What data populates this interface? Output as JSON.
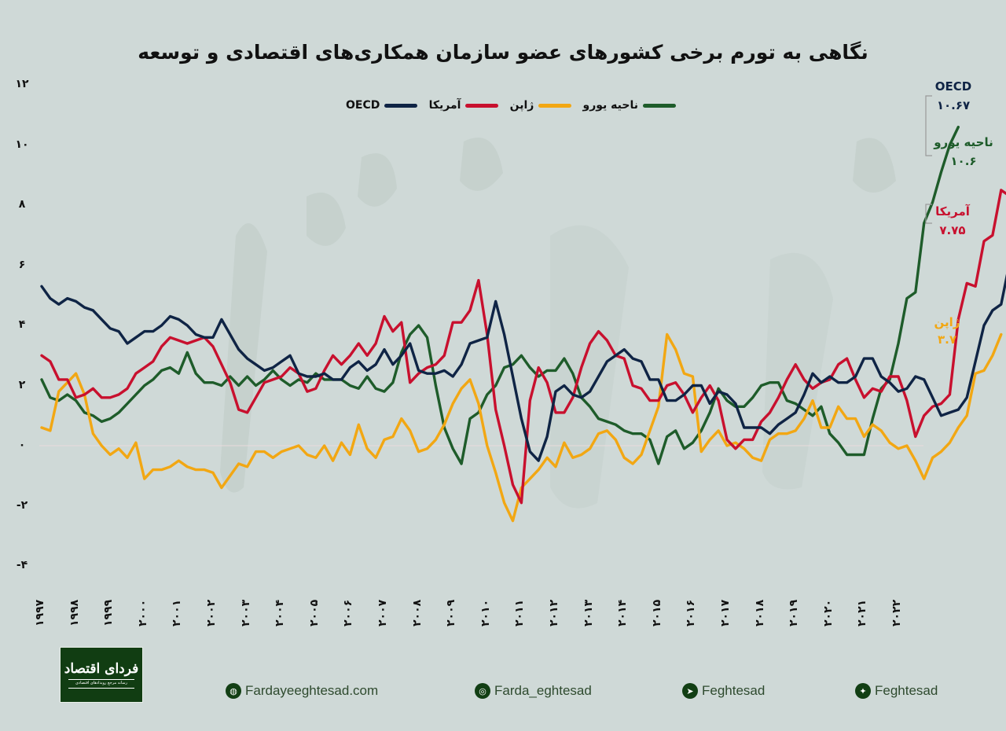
{
  "title": "نگاهی به تورم برخی کشورهای عضو سازمان همکاری‌های اقتصادی و توسعه",
  "legend": [
    {
      "label": "OECD",
      "color": "#0f2445"
    },
    {
      "label": "آمریکا",
      "color": "#c8102e"
    },
    {
      "label": "ژاپن",
      "color": "#f2a713"
    },
    {
      "label": "ناحیه یورو",
      "color": "#1e5c2a"
    }
  ],
  "end_labels": {
    "oecd": {
      "name": "OECD",
      "value": "۱۰.۶۷"
    },
    "euro": {
      "name": "ناحیه یورو",
      "value": "۱۰.۶"
    },
    "us": {
      "name": "آمریکا",
      "value": "۷.۷۵"
    },
    "japan": {
      "name": "ژاپن",
      "value": "۳.۷"
    }
  },
  "y_ticks": [
    "۱۲",
    "۱۰",
    "۸",
    "۶",
    "۴",
    "۲",
    "۰",
    "-۲",
    "-۴"
  ],
  "x_ticks": [
    "۱۹۹۷",
    "۱۹۹۸",
    "۱۹۹۹",
    "۲۰۰۰",
    "۲۰۰۱",
    "۲۰۰۲",
    "۲۰۰۳",
    "۲۰۰۴",
    "۲۰۰۵",
    "۲۰۰۶",
    "۲۰۰۷",
    "۲۰۰۸",
    "۲۰۰۹",
    "۲۰۱۰",
    "۲۰۱۱",
    "۲۰۱۲",
    "۲۰۱۳",
    "۲۰۱۴",
    "۲۰۱۵",
    "۲۰۱۶",
    "۲۰۱۷",
    "۲۰۱۸",
    "۲۰۱۹",
    "۲۰۲۰",
    "۲۰۲۱",
    "۲۰۲۲"
  ],
  "footer": {
    "logo_name": "فردای اقتصاد",
    "logo_tagline": "رسانه مرجع رویدادهای اقتصادی",
    "links": [
      {
        "icon": "globe-icon",
        "label": "Fardayeeghtesad.com"
      },
      {
        "icon": "instagram-icon",
        "label": "Farda_eghtesad"
      },
      {
        "icon": "telegram-icon",
        "label": "Feghtesad"
      },
      {
        "icon": "twitter-icon",
        "label": "Feghtesad"
      }
    ]
  },
  "chart_data": {
    "type": "line",
    "title": "نگاهی به تورم برخی کشورهای عضو سازمان همکاری‌های اقتصادی و توسعه",
    "xlabel": "",
    "ylabel": "",
    "ylim": [
      -4,
      12
    ],
    "grid": false,
    "legend_position": "top",
    "x_start": 1997.0,
    "x_step": 0.25,
    "x_tick_labels": [
      "1997",
      "1998",
      "1999",
      "2000",
      "2001",
      "2002",
      "2003",
      "2004",
      "2005",
      "2006",
      "2007",
      "2008",
      "2009",
      "2010",
      "2011",
      "2012",
      "2013",
      "2014",
      "2015",
      "2016",
      "2017",
      "2018",
      "2019",
      "2020",
      "2021",
      "2022"
    ],
    "series": [
      {
        "name": "OECD",
        "color": "#0f2445",
        "values": [
          5.3,
          4.9,
          4.7,
          4.9,
          4.8,
          4.6,
          4.5,
          4.2,
          3.9,
          3.8,
          3.4,
          3.6,
          3.8,
          3.8,
          4.0,
          4.3,
          4.2,
          4.0,
          3.7,
          3.6,
          3.6,
          4.2,
          3.7,
          3.2,
          2.9,
          2.7,
          2.5,
          2.6,
          2.8,
          3.0,
          2.4,
          2.3,
          2.3,
          2.4,
          2.2,
          2.2,
          2.6,
          2.8,
          2.5,
          2.7,
          3.2,
          2.7,
          3.0,
          3.4,
          2.5,
          2.4,
          2.4,
          2.5,
          2.3,
          2.7,
          3.4,
          3.5,
          3.6,
          4.8,
          3.7,
          2.3,
          0.9,
          -0.2,
          -0.5,
          0.3,
          1.8,
          2.0,
          1.7,
          1.6,
          1.8,
          2.3,
          2.8,
          3.0,
          3.2,
          2.9,
          2.8,
          2.2,
          2.2,
          1.5,
          1.5,
          1.7,
          2.0,
          2.0,
          1.4,
          1.8,
          1.7,
          1.4,
          0.6,
          0.6,
          0.6,
          0.4,
          0.7,
          0.9,
          1.1,
          1.7,
          2.4,
          2.1,
          2.3,
          2.1,
          2.1,
          2.3,
          2.9,
          2.9,
          2.3,
          2.1,
          1.8,
          1.9,
          2.3,
          2.2,
          1.6,
          1.0,
          1.1,
          1.2,
          1.6,
          2.8,
          4.0,
          4.5,
          4.7,
          6.1,
          7.5,
          8.2,
          9.6,
          10.3,
          10.67
        ]
      },
      {
        "name": "آمریکا",
        "color": "#c8102e",
        "values": [
          3.0,
          2.8,
          2.2,
          2.2,
          1.6,
          1.7,
          1.9,
          1.6,
          1.6,
          1.7,
          1.9,
          2.4,
          2.6,
          2.8,
          3.3,
          3.6,
          3.5,
          3.4,
          3.5,
          3.6,
          3.3,
          2.7,
          2.1,
          1.2,
          1.1,
          1.6,
          2.1,
          2.2,
          2.3,
          2.6,
          2.4,
          1.8,
          1.9,
          2.5,
          3.0,
          2.7,
          3.0,
          3.4,
          3.0,
          3.4,
          4.3,
          3.8,
          4.1,
          2.1,
          2.4,
          2.6,
          2.7,
          3.0,
          4.1,
          4.1,
          4.5,
          5.5,
          3.7,
          1.2,
          0.0,
          -1.3,
          -1.9,
          1.5,
          2.6,
          2.1,
          1.1,
          1.1,
          1.6,
          2.6,
          3.4,
          3.8,
          3.5,
          3.0,
          2.9,
          2.0,
          1.9,
          1.5,
          1.5,
          2.0,
          2.1,
          1.7,
          1.1,
          1.6,
          2.0,
          1.5,
          0.2,
          -0.1,
          0.2,
          0.2,
          0.8,
          1.1,
          1.6,
          2.2,
          2.7,
          2.2,
          1.9,
          2.1,
          2.2,
          2.7,
          2.9,
          2.2,
          1.6,
          1.9,
          1.8,
          2.3,
          2.3,
          1.5,
          0.3,
          1.0,
          1.3,
          1.4,
          1.7,
          4.2,
          5.4,
          5.3,
          6.8,
          7.0,
          8.5,
          8.3,
          9.1,
          8.2,
          7.75
        ]
      },
      {
        "name": "ژاپن",
        "color": "#f2a713",
        "values": [
          0.6,
          0.5,
          1.8,
          2.1,
          2.4,
          1.7,
          0.4,
          0.0,
          -0.3,
          -0.1,
          -0.4,
          0.1,
          -1.1,
          -0.8,
          -0.8,
          -0.7,
          -0.5,
          -0.7,
          -0.8,
          -0.8,
          -0.9,
          -1.4,
          -1.0,
          -0.6,
          -0.7,
          -0.2,
          -0.2,
          -0.4,
          -0.2,
          -0.1,
          0.0,
          -0.3,
          -0.4,
          0.0,
          -0.5,
          0.1,
          -0.3,
          0.7,
          -0.1,
          -0.4,
          0.2,
          0.3,
          0.9,
          0.5,
          -0.2,
          -0.1,
          0.2,
          0.7,
          1.4,
          1.9,
          2.2,
          1.4,
          0.0,
          -0.9,
          -1.9,
          -2.5,
          -1.4,
          -1.1,
          -0.8,
          -0.4,
          -0.7,
          0.1,
          -0.4,
          -0.3,
          -0.1,
          0.4,
          0.5,
          0.2,
          -0.4,
          -0.6,
          -0.3,
          0.5,
          1.3,
          3.7,
          3.2,
          2.4,
          2.3,
          -0.2,
          0.2,
          0.5,
          0.0,
          0.1,
          -0.1,
          -0.4,
          -0.5,
          0.2,
          0.4,
          0.4,
          0.5,
          0.9,
          1.5,
          0.6,
          0.6,
          1.3,
          0.9,
          0.9,
          0.3,
          0.7,
          0.5,
          0.1,
          -0.1,
          0.0,
          -0.5,
          -1.1,
          -0.4,
          -0.2,
          0.1,
          0.6,
          1.0,
          2.4,
          2.5,
          3.0,
          3.7
        ]
      },
      {
        "name": "ناحیه یورو",
        "color": "#1e5c2a",
        "values": [
          2.2,
          1.6,
          1.5,
          1.7,
          1.5,
          1.1,
          1.0,
          0.8,
          0.9,
          1.1,
          1.4,
          1.7,
          2.0,
          2.2,
          2.5,
          2.6,
          2.4,
          3.1,
          2.4,
          2.1,
          2.1,
          2.0,
          2.3,
          2.0,
          2.3,
          2.0,
          2.2,
          2.5,
          2.2,
          2.0,
          2.2,
          2.1,
          2.4,
          2.2,
          2.2,
          2.2,
          2.0,
          1.9,
          2.3,
          1.9,
          1.8,
          2.1,
          3.1,
          3.7,
          4.0,
          3.6,
          2.0,
          0.6,
          -0.1,
          -0.6,
          0.9,
          1.1,
          1.7,
          2.0,
          2.6,
          2.7,
          3.0,
          2.6,
          2.3,
          2.5,
          2.5,
          2.9,
          2.4,
          1.6,
          1.3,
          0.9,
          0.8,
          0.7,
          0.5,
          0.4,
          0.4,
          0.2,
          -0.6,
          0.3,
          0.5,
          -0.1,
          0.1,
          0.5,
          1.1,
          1.9,
          1.5,
          1.3,
          1.3,
          1.6,
          2.0,
          2.1,
          2.1,
          1.5,
          1.4,
          1.2,
          1.0,
          1.3,
          0.4,
          0.1,
          -0.3,
          -0.3,
          -0.3,
          0.9,
          1.9,
          2.2,
          3.4,
          4.9,
          5.1,
          7.4,
          8.1,
          9.1,
          10.0,
          10.6
        ]
      }
    ]
  }
}
